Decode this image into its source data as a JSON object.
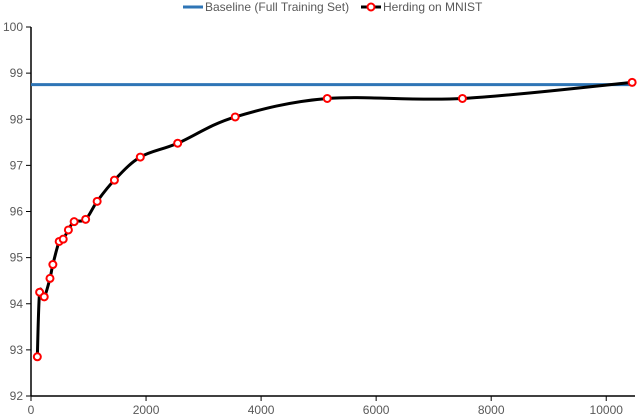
{
  "chart_data": {
    "type": "line",
    "title": "",
    "xlabel": "",
    "ylabel": "",
    "xlim": [
      0,
      10500
    ],
    "ylim": [
      92,
      100
    ],
    "x_ticks": [
      0,
      2000,
      4000,
      6000,
      8000,
      10000
    ],
    "y_ticks": [
      92,
      93,
      94,
      95,
      96,
      97,
      98,
      99,
      100
    ],
    "grid": false,
    "legend": {
      "position": "top-center"
    },
    "series": [
      {
        "name": "Baseline (Full Training Set)",
        "color": "#2E75B6",
        "style": "line",
        "x": [
          0,
          10500
        ],
        "y": [
          98.75,
          98.75
        ]
      },
      {
        "name": "Herding on MNIST",
        "color": "#000000",
        "marker_color": "#FF0000",
        "style": "smooth-line-markers",
        "x": [
          110,
          150,
          230,
          330,
          380,
          490,
          560,
          650,
          750,
          950,
          1150,
          1450,
          1900,
          2550,
          3550,
          5150,
          7500,
          10450
        ],
        "y": [
          92.85,
          94.25,
          94.15,
          94.55,
          94.85,
          95.35,
          95.4,
          95.6,
          95.78,
          95.83,
          96.22,
          96.68,
          97.18,
          97.48,
          98.05,
          98.45,
          98.45,
          98.8
        ]
      }
    ]
  }
}
